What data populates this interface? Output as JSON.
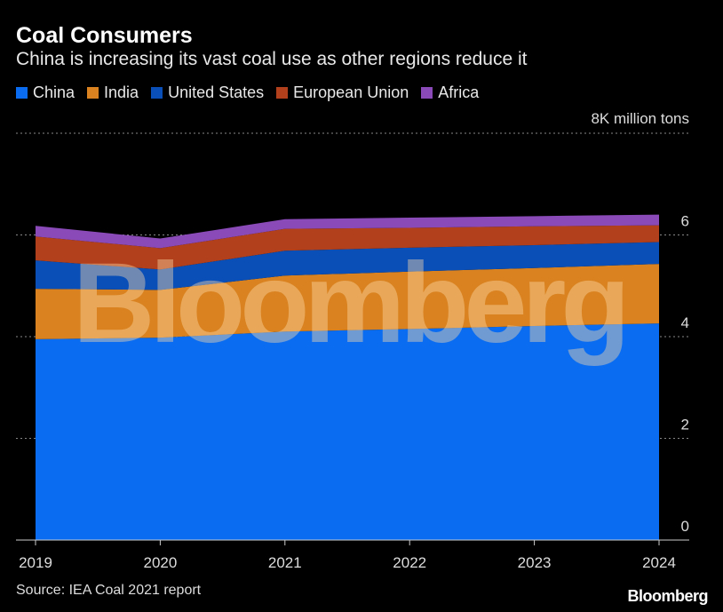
{
  "chart_data": {
    "type": "area",
    "stacked": true,
    "title": "Coal Consumers",
    "subtitle": "China is increasing its vast coal use as other regions reduce it",
    "unit_label": "8K million tons",
    "x": [
      "2019",
      "2020",
      "2021",
      "2022",
      "2023",
      "2024"
    ],
    "series": [
      {
        "name": "China",
        "color": "#0a6cf0",
        "values": [
          3.95,
          3.98,
          4.1,
          4.15,
          4.21,
          4.26
        ]
      },
      {
        "name": "India",
        "color": "#d9821f",
        "values": [
          0.99,
          0.94,
          1.1,
          1.13,
          1.14,
          1.17
        ]
      },
      {
        "name": "United States",
        "color": "#0a4fb8",
        "values": [
          0.56,
          0.4,
          0.49,
          0.47,
          0.45,
          0.43
        ]
      },
      {
        "name": "European Union",
        "color": "#b2401c",
        "values": [
          0.47,
          0.42,
          0.43,
          0.39,
          0.37,
          0.33
        ]
      },
      {
        "name": "Africa",
        "color": "#8a4ab8",
        "values": [
          0.21,
          0.19,
          0.19,
          0.2,
          0.2,
          0.21
        ]
      }
    ],
    "ylim": [
      0,
      8
    ],
    "yticks": [
      "0",
      "2",
      "4",
      "6"
    ],
    "grid": true,
    "legend": "top-left"
  },
  "source": "Source: IEA Coal 2021 report",
  "brand": "Bloomberg",
  "watermark": "Bloomberg"
}
